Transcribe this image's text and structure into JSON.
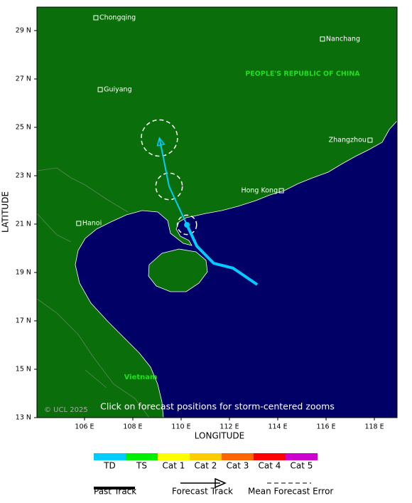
{
  "map": {
    "x_label": "LONGITUDE",
    "y_label": "LATITUDE",
    "xlim": [
      104.03,
      118.94
    ],
    "ylim": [
      13,
      29.97
    ],
    "xticks": [
      {
        "value": 106,
        "label": "106 E"
      },
      {
        "value": 108,
        "label": "108 E"
      },
      {
        "value": 110,
        "label": "110 E"
      },
      {
        "value": 112,
        "label": "112 E"
      },
      {
        "value": 114,
        "label": "114 E"
      },
      {
        "value": 116,
        "label": "116 E"
      },
      {
        "value": 118,
        "label": "118 E"
      }
    ],
    "yticks": [
      {
        "value": 13,
        "label": "13 N"
      },
      {
        "value": 15,
        "label": "15 N"
      },
      {
        "value": 17,
        "label": "17 N"
      },
      {
        "value": 19,
        "label": "19 N"
      },
      {
        "value": 21,
        "label": "21 N"
      },
      {
        "value": 23,
        "label": "23 N"
      },
      {
        "value": 25,
        "label": "25 N"
      },
      {
        "value": 27,
        "label": "27 N"
      },
      {
        "value": 29,
        "label": "29 N"
      }
    ],
    "cities": [
      {
        "name": "Chongqing",
        "lon": 106.47,
        "lat": 29.53,
        "side": "right"
      },
      {
        "name": "Nanchang",
        "lon": 115.85,
        "lat": 28.65,
        "side": "right"
      },
      {
        "name": "Guiyang",
        "lon": 106.65,
        "lat": 26.56,
        "side": "right"
      },
      {
        "name": "Zhangzhou",
        "lon": 117.82,
        "lat": 24.47,
        "side": "left"
      },
      {
        "name": "Hong Kong",
        "lon": 114.15,
        "lat": 22.38,
        "side": "left"
      },
      {
        "name": "Hanoi",
        "lon": 105.76,
        "lat": 21.03,
        "side": "right"
      }
    ],
    "country_label": "PEOPLE'S REPUBLIC OF CHINA",
    "vietnam_label": "Vietnam",
    "copyright": "© UCL 2025",
    "hint": "Click on forecast positions for storm-centered zooms",
    "track": {
      "color": "#00ccff",
      "past": {
        "lon": [
          113.15,
          112.15,
          111.35,
          110.65,
          110.24
        ],
        "lat": [
          18.5,
          19.18,
          19.38,
          20.09,
          20.97
        ]
      },
      "forecast": {
        "lon": [
          110.24,
          109.5,
          109.1
        ],
        "lat": [
          20.97,
          22.56,
          24.56
        ],
        "error_radius": [
          0.4,
          0.55,
          0.75
        ]
      }
    },
    "legend": {
      "categories": [
        {
          "name": "TD",
          "color": "#00ccff"
        },
        {
          "name": "TS",
          "color": "#00ee00"
        },
        {
          "name": "Cat 1",
          "color": "#ffff00"
        },
        {
          "name": "Cat 2",
          "color": "#ffcc00"
        },
        {
          "name": "Cat 3",
          "color": "#ff6600"
        },
        {
          "name": "Cat 4",
          "color": "#ff0000"
        },
        {
          "name": "Cat 5",
          "color": "#cc00cc"
        }
      ],
      "past_track": "Past Track",
      "forecast_track": "Forecast Track",
      "error": "Mean Forecast Error"
    }
  }
}
